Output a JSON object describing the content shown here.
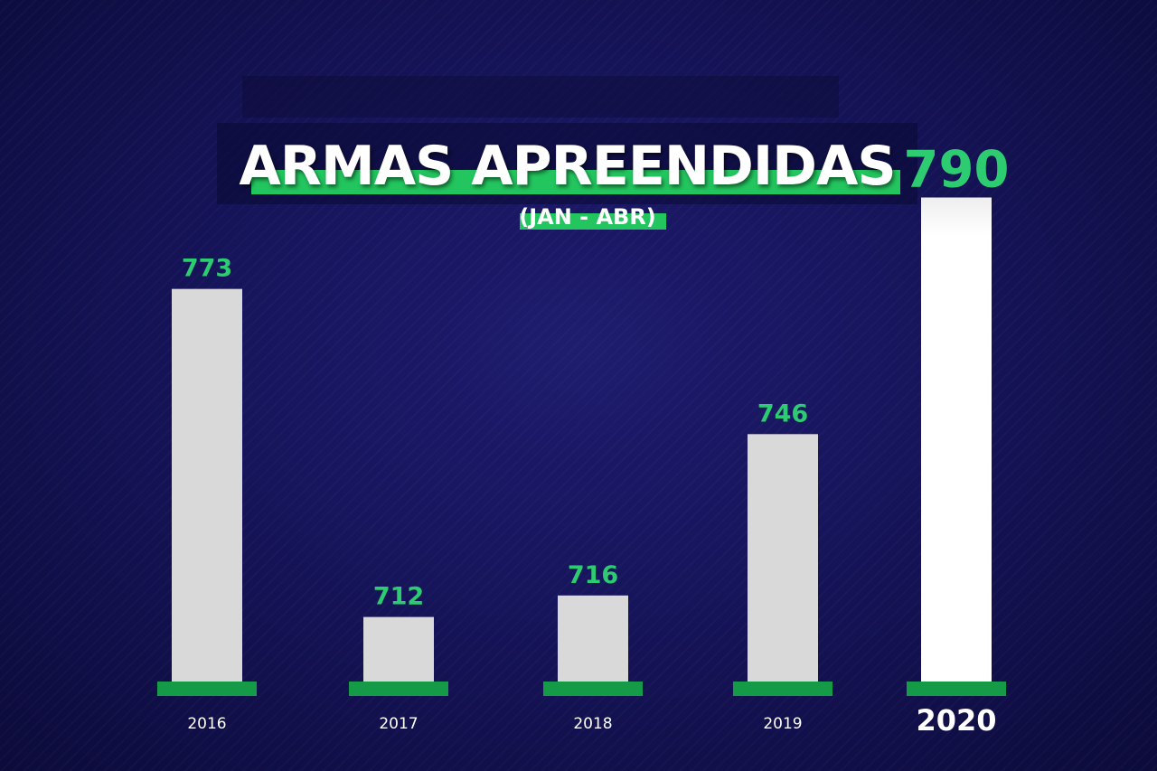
{
  "title": "ARMAS APREENDIDAS",
  "subtitle": "(JAN - ABR)",
  "colors": {
    "background": "#16145a",
    "bar": "#d9d9d9",
    "bar_highlight": "#ffffff",
    "accent": "#22c55e",
    "base": "#159a48",
    "value_text": "#2ecc71"
  },
  "chart_data": {
    "type": "bar",
    "title": "ARMAS APREENDIDAS",
    "subtitle": "(JAN - ABR)",
    "categories": [
      "2016",
      "2017",
      "2018",
      "2019",
      "2020"
    ],
    "values": [
      773,
      712,
      716,
      746,
      790
    ],
    "highlight": "2020",
    "xlabel": "",
    "ylabel": "",
    "grid": false
  }
}
